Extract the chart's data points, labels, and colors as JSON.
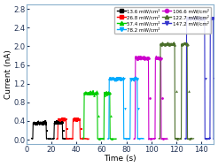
{
  "title": "",
  "xlabel": "Time (s)",
  "ylabel": "Current (nA)",
  "xlim": [
    0,
    150
  ],
  "ylim": [
    -0.1,
    2.9
  ],
  "yticks": [
    0.0,
    0.4,
    0.8,
    1.2,
    1.6,
    2.0,
    2.4,
    2.8
  ],
  "xticks": [
    0,
    20,
    40,
    60,
    80,
    100,
    120,
    140
  ],
  "background_color": "#ffffff",
  "series": [
    {
      "label": "13.6 mW/cm²",
      "color": "#000000",
      "marker": "s",
      "segments": [
        {
          "on_start": 5,
          "on_end": 16,
          "off_end": 22
        },
        {
          "on_start": 22,
          "on_end": 29,
          "off_end": 35
        }
      ],
      "peak": 0.36,
      "baseline": 0.02
    },
    {
      "label": "26.8 mW/cm²",
      "color": "#ff0000",
      "marker": "s",
      "segments": [
        {
          "on_start": 25,
          "on_end": 32,
          "off_end": 37
        },
        {
          "on_start": 37,
          "on_end": 43,
          "off_end": 50
        }
      ],
      "peak": 0.43,
      "baseline": 0.02
    },
    {
      "label": "57.4 mW/cm²",
      "color": "#00cc00",
      "marker": "^",
      "segments": [
        {
          "on_start": 46,
          "on_end": 57,
          "off_end": 62
        },
        {
          "on_start": 62,
          "on_end": 67,
          "off_end": 72
        }
      ],
      "peak": 1.0,
      "baseline": 0.02
    },
    {
      "label": "78.2 mW/cm²",
      "color": "#00aaff",
      "marker": "v",
      "segments": [
        {
          "on_start": 66,
          "on_end": 78,
          "off_end": 83
        },
        {
          "on_start": 83,
          "on_end": 89,
          "off_end": 94
        }
      ],
      "peak": 1.3,
      "baseline": 0.02
    },
    {
      "label": "106.6 mW/cm²",
      "color": "#cc00cc",
      "marker": "o",
      "segments": [
        {
          "on_start": 87,
          "on_end": 98,
          "off_end": 103
        },
        {
          "on_start": 103,
          "on_end": 108,
          "off_end": 113
        }
      ],
      "peak": 1.75,
      "baseline": 0.02
    },
    {
      "label": "122.7 mW/cm²",
      "color": "#4a6e2a",
      "marker": "^",
      "segments": [
        {
          "on_start": 107,
          "on_end": 119,
          "off_end": 124
        },
        {
          "on_start": 124,
          "on_end": 129,
          "off_end": 134
        }
      ],
      "peak": 2.05,
      "baseline": 0.02
    },
    {
      "label": "147.2 mW/cm²",
      "color": "#3333cc",
      "marker": "v",
      "segments": [
        {
          "on_start": 128,
          "on_end": 143,
          "off_end": 147
        },
        {
          "on_start": 147,
          "on_end": 150,
          "off_end": 150
        }
      ],
      "peak": 2.6,
      "baseline": 0.02
    }
  ],
  "legend_cols": 2,
  "fontsize": 6.5
}
